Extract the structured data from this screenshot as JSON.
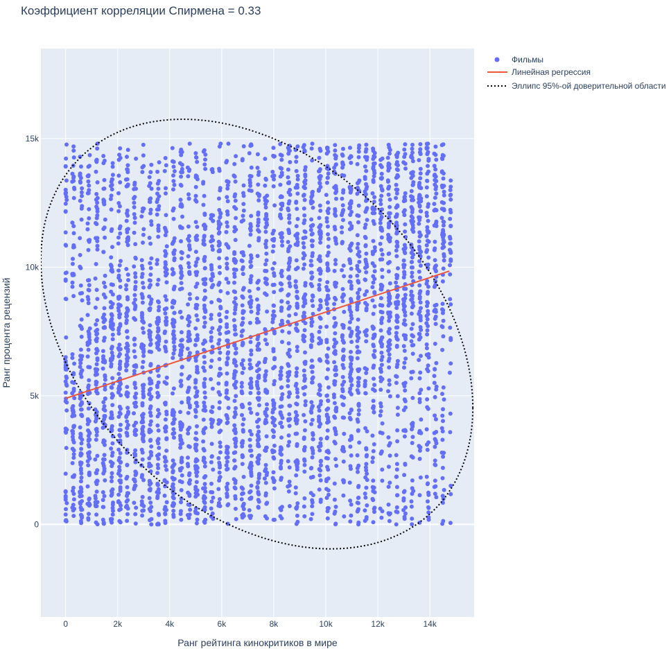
{
  "chart_data": {
    "type": "scatter",
    "title": "Коэффициент корреляции Спирмена = 0.33",
    "xlabel": "Ранг рейтинга кинокритиков в мире",
    "ylabel": "Ранг процента рецензий",
    "xlim": [
      -950,
      15700
    ],
    "ylim": [
      -3600,
      18500
    ],
    "x_ticks": [
      0,
      2000,
      4000,
      6000,
      8000,
      10000,
      12000,
      14000
    ],
    "x_tick_labels": [
      "0",
      "2k",
      "4k",
      "6k",
      "8k",
      "10k",
      "12k",
      "14k"
    ],
    "y_ticks": [
      0,
      5000,
      10000,
      15000
    ],
    "y_tick_labels": [
      "0",
      "5k",
      "10k",
      "15k"
    ],
    "grid": true,
    "legend_position": "top-right",
    "colors": {
      "points": "#636efa",
      "regression": "#ef553b",
      "ellipse": "#000000",
      "plot_bg": "#e5ecf6",
      "grid": "#ffffff",
      "text": "#2a3f5f"
    },
    "legend": [
      {
        "label": "Фильмы",
        "kind": "marker"
      },
      {
        "label": "Линейная регрессия",
        "kind": "line"
      },
      {
        "label": "Эллипс 95%-ой доверительной области",
        "kind": "dotted"
      }
    ],
    "series": [
      {
        "name": "Фильмы",
        "kind": "scatter",
        "n_points": 14800,
        "x_range": [
          0,
          14800
        ],
        "y_range": [
          0,
          14800
        ],
        "spearman": 0.33
      },
      {
        "name": "Линейная регрессия",
        "kind": "line",
        "x": [
          0,
          14750
        ],
        "y": [
          4900,
          9850
        ]
      },
      {
        "name": "Эллипс 95%-ой доверительной области",
        "kind": "ellipse",
        "x": [
          -950,
          4700,
          10200,
          15650
        ],
        "y": [
          5000,
          -950,
          15750,
          10000
        ]
      }
    ]
  }
}
